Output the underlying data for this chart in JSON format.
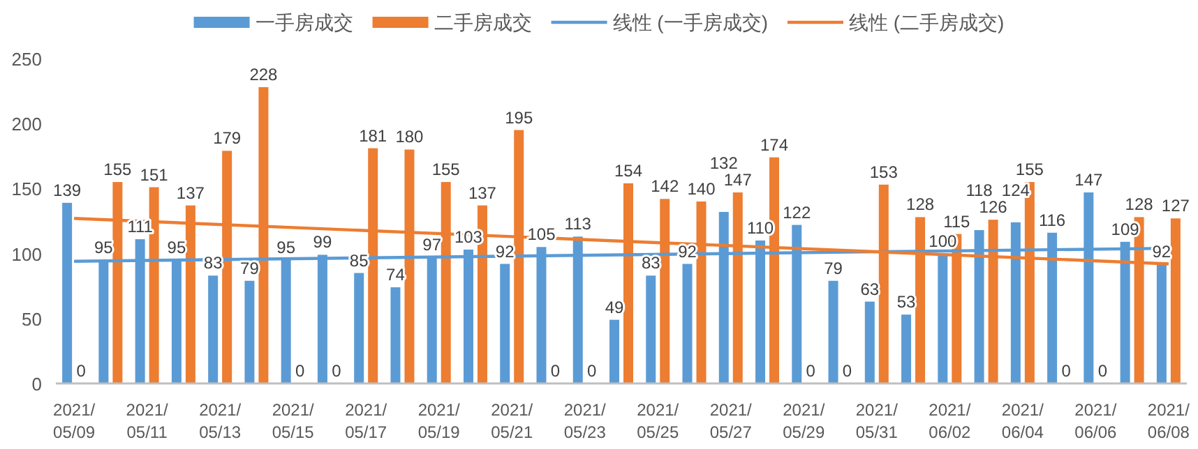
{
  "chart_data": {
    "type": "bar",
    "categories": [
      "2021/05/09",
      null,
      "2021/05/11",
      null,
      "2021/05/13",
      null,
      "2021/05/15",
      null,
      "2021/05/17",
      null,
      "2021/05/19",
      null,
      "2021/05/21",
      null,
      "2021/05/23",
      null,
      "2021/05/25",
      null,
      "2021/05/27",
      null,
      "2021/05/29",
      null,
      "2021/05/31",
      null,
      "2021/06/02",
      null,
      "2021/06/04",
      null,
      "2021/06/06",
      null,
      "2021/06/08"
    ],
    "series": [
      {
        "name": "一手房成交",
        "color": "#5b9bd5",
        "values": [
          139,
          95,
          111,
          95,
          83,
          79,
          95,
          99,
          85,
          74,
          97,
          103,
          92,
          105,
          113,
          49,
          83,
          92,
          132,
          110,
          122,
          79,
          63,
          53,
          100,
          118,
          124,
          116,
          147,
          109,
          92
        ],
        "value_labels": [
          "139",
          "95",
          "111",
          "95",
          "83",
          "79",
          "95",
          "99",
          "85",
          "74",
          "97",
          "103",
          "92",
          "105",
          "113",
          "49",
          "83",
          "92",
          "132",
          "110",
          "122",
          "79",
          "63",
          "53",
          "100",
          "118",
          "124",
          "116",
          "147",
          "109",
          "92"
        ]
      },
      {
        "name": "二手房成交",
        "color": "#ed7d31",
        "values": [
          0,
          155,
          151,
          137,
          179,
          228,
          0,
          0,
          181,
          180,
          155,
          137,
          195,
          0,
          0,
          154,
          142,
          140,
          147,
          174,
          0,
          0,
          153,
          128,
          115,
          126,
          155,
          0,
          0,
          128,
          127
        ],
        "value_labels": [
          "0",
          "155",
          "151",
          "137",
          "179",
          "228",
          "0",
          "0",
          "181",
          "180",
          "155",
          "137",
          "195",
          "0",
          "0",
          "154",
          "142",
          "140",
          "147",
          "174",
          "0",
          "0",
          "153",
          "128",
          "115",
          "126",
          "155",
          "0",
          "0",
          "128",
          "127"
        ]
      },
      {
        "name": "线性 (一手房成交)",
        "type": "line",
        "color": "#5b9bd5",
        "x": [
          "2021/05/09",
          "2021/06/08"
        ],
        "values": [
          94,
          104
        ]
      },
      {
        "name": "线性 (二手房成交)",
        "type": "line",
        "color": "#ed7d31",
        "x": [
          "2021/05/09",
          "2021/06/08"
        ],
        "values": [
          127,
          92
        ]
      }
    ],
    "ylim": [
      0,
      250
    ],
    "yticks": [
      0,
      50,
      100,
      150,
      200,
      250
    ],
    "legend": "top",
    "grid": false
  }
}
